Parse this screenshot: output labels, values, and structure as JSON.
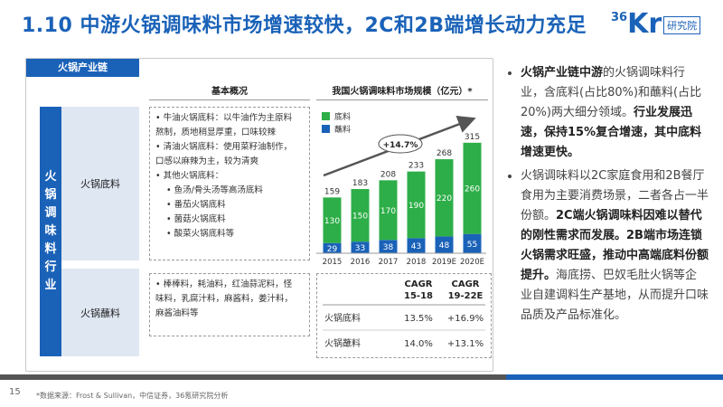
{
  "title": "1.10 中游火锅调味料市场增速较快，2C和2B端增长动力充足",
  "logo": {
    "num": "36",
    "kr": "Kr",
    "tag": "研究院"
  },
  "chain_label": "火锅产业链",
  "vertical_label": "火锅调味料行业",
  "col_headers": {
    "overview": "基本概况",
    "scale": "我国火锅调味料市场规模（亿元）*"
  },
  "rows": {
    "base": {
      "label": "火锅底料",
      "lines": [
        "• 牛油火锅底料：以牛油作为主原料",
        "熬制，质地稍显厚重，口味较辣",
        "• 清油火锅底料：使用菜籽油制作，",
        "口感以麻辣为主，较为清爽",
        "• 其他火锅底料："
      ],
      "sublines": [
        "• 鱼汤/骨头汤等高汤底料",
        "• 番茄火锅底料",
        "• 菌菇火锅底料",
        "• 酸菜火锅底料等"
      ]
    },
    "dip": {
      "label": "火锅蘸料",
      "lines": [
        "• 棒棒料，耗油料，红油蒜泥料，怪",
        "味料，乳腐汁料，麻酱料，姜汁料，",
        "麻酱油料等"
      ]
    }
  },
  "chart_data": {
    "type": "bar",
    "title": "我国火锅调味料市场规模（亿元）*",
    "categories": [
      "2015",
      "2016",
      "2017",
      "2018",
      "2019E",
      "2020E"
    ],
    "series": [
      {
        "name": "蘸料",
        "values": [
          29,
          33,
          38,
          43,
          48,
          55
        ]
      },
      {
        "name": "底料",
        "values": [
          130,
          150,
          170,
          190,
          220,
          260
        ]
      }
    ],
    "totals": [
      159,
      183,
      208,
      233,
      268,
      315
    ],
    "legend": [
      "底料",
      "蘸料"
    ],
    "annotation": "+14.7%",
    "ylim": [
      0,
      330
    ],
    "colors": {
      "底料": "#2dae48",
      "蘸料": "#1a62b8"
    }
  },
  "cagr": {
    "headers": [
      "CAGR\n15-18",
      "CAGR\n19-22E"
    ],
    "h1a": "CAGR",
    "h1b": "15-18",
    "h2a": "CAGR",
    "h2b": "19-22E",
    "rows": [
      {
        "name": "火锅底料",
        "v1": "13.5%",
        "v2": "+16.9%"
      },
      {
        "name": "火锅蘸料",
        "v1": "14.0%",
        "v2": "+13.1%"
      }
    ]
  },
  "right": {
    "p1_bold1": "火锅产业链中游",
    "p1_text1": "的火锅调味料行业，含底料(占比80%)和蘸料(占比20%)两大细分领域。",
    "p1_bold2": "行业发展迅速，保持15%复合增速，其中底料增速更快。",
    "p2_text1": "火锅调味料以2C家庭食用和2B餐厅食用为主要消费场景，二者各占一半份额。",
    "p2_bold1": "2C端火锅调味料因难以替代的刚性需求而发展。2B端市场连锁火锅需求旺盛，推动中高端底料份额提升。",
    "p2_text2": "海底捞、巴奴毛肚火锅等企业自建调料生产基地，从而提升口味品质及产品标准化。"
  },
  "page_number": "15",
  "source": "*数据来源：Frost & Sullivan，中信证券，36氪研究院分析",
  "colors": {
    "accent": "#1a62b8",
    "green": "#2dae48",
    "bar_gray": "#555555"
  }
}
